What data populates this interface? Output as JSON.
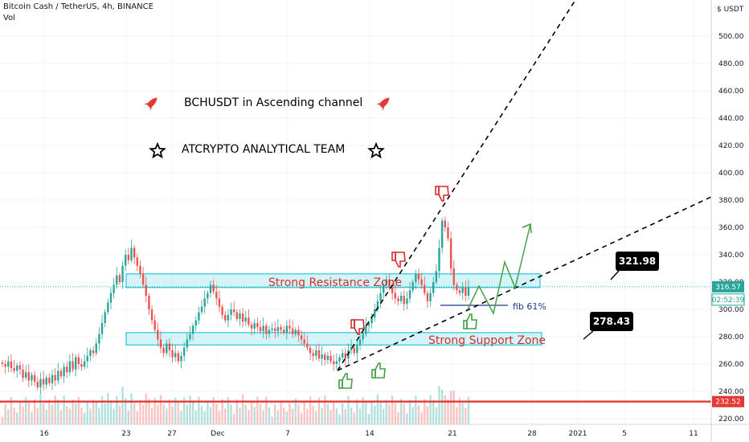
{
  "header": {
    "symbol_line": "Bitcoin Cash / TetherUS, 4h, BINANCE",
    "vol_label": "Vol"
  },
  "chart_data": {
    "type": "candlestick",
    "currency_label": "USDT",
    "y_ticks": [
      220,
      240,
      260,
      280,
      300,
      320,
      340,
      360,
      380,
      400,
      420,
      440,
      460,
      480,
      500
    ],
    "y_range": [
      214,
      520
    ],
    "x_ticks": [
      "16",
      "23",
      "27",
      "Dec",
      "7",
      "14",
      "21",
      "28",
      "2021",
      "5",
      "11"
    ],
    "price_markers": {
      "current_price": "316.57",
      "countdown": "02:52:39",
      "red_level": "232.52"
    },
    "zones": {
      "resistance": {
        "label": "Strong Resistance Zone",
        "low": 316,
        "high": 326
      },
      "support": {
        "label": "Strong Support Zone",
        "low": 274,
        "high": 283
      }
    },
    "fib_label": "fib 61%",
    "fib_level": 303,
    "annotations": {
      "title_line": "BCHUSDT in Ascending channel",
      "team_line": "ATCRYPTO ANALYTICAL TEAM",
      "target_upper": "321.98",
      "target_lower": "278.43"
    },
    "colors": {
      "bull": "#26a69a",
      "bear": "#ef5350",
      "zone_fill": "#b2ebf2",
      "zone_stroke": "#00bcd4",
      "red_line": "#e53935",
      "projection": "#43a047",
      "fib": "#1e3a8a",
      "zone_text": "#d32f2f"
    }
  }
}
